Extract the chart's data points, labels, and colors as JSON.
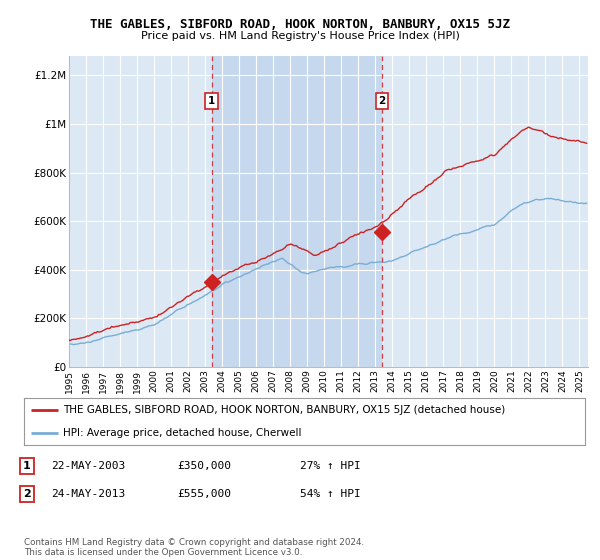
{
  "title": "THE GABLES, SIBFORD ROAD, HOOK NORTON, BANBURY, OX15 5JZ",
  "subtitle": "Price paid vs. HM Land Registry's House Price Index (HPI)",
  "ylabel_ticks": [
    "£0",
    "£200K",
    "£400K",
    "£600K",
    "£800K",
    "£1M",
    "£1.2M"
  ],
  "ytick_values": [
    0,
    200000,
    400000,
    600000,
    800000,
    1000000,
    1200000
  ],
  "ylim": [
    0,
    1280000
  ],
  "xlim_start": 1995.0,
  "xlim_end": 2025.5,
  "background_color": "#ffffff",
  "plot_bg_color": "#dce9f5",
  "shade_bg_color": "#c5d8ee",
  "grid_color": "#ffffff",
  "red_line_color": "#cc2222",
  "blue_line_color": "#7aadd4",
  "marker1_x": 2003.38,
  "marker1_y": 350000,
  "marker2_x": 2013.38,
  "marker2_y": 555000,
  "vline1_x": 2003.38,
  "vline2_x": 2013.38,
  "legend_line1": "THE GABLES, SIBFORD ROAD, HOOK NORTON, BANBURY, OX15 5JZ (detached house)",
  "legend_line2": "HPI: Average price, detached house, Cherwell",
  "table_rows": [
    {
      "num": "1",
      "date": "22-MAY-2003",
      "price": "£350,000",
      "hpi": "27% ↑ HPI"
    },
    {
      "num": "2",
      "date": "24-MAY-2013",
      "price": "£555,000",
      "hpi": "54% ↑ HPI"
    }
  ],
  "footer": "Contains HM Land Registry data © Crown copyright and database right 2024.\nThis data is licensed under the Open Government Licence v3.0.",
  "xtick_years": [
    1995,
    1996,
    1997,
    1998,
    1999,
    2000,
    2001,
    2002,
    2003,
    2004,
    2005,
    2006,
    2007,
    2008,
    2009,
    2010,
    2011,
    2012,
    2013,
    2014,
    2015,
    2016,
    2017,
    2018,
    2019,
    2020,
    2021,
    2022,
    2023,
    2024,
    2025
  ]
}
